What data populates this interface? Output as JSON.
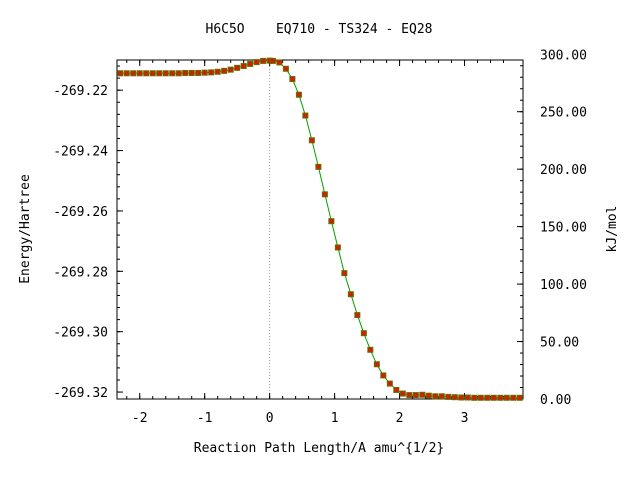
{
  "chart_data": {
    "type": "line",
    "title": "H6C5O    EQ710 - TS324 - EQ28",
    "xlabel": "Reaction Path Length/A amu^{1/2}",
    "ylabel": "Energy/Hartree",
    "y2label": "kJ/mol",
    "xlim": [
      -2.35,
      3.9
    ],
    "ylim": [
      -269.3223,
      -269.21
    ],
    "y2lim": [
      0,
      295
    ],
    "x_ticks": [
      -2,
      -1,
      0,
      1,
      2,
      3
    ],
    "x_tick_labels": [
      "-2",
      "-1",
      "0",
      "1",
      "2",
      "3"
    ],
    "y_ticks": [
      -269.22,
      -269.24,
      -269.26,
      -269.28,
      -269.3,
      -269.32
    ],
    "y_tick_labels": [
      "-269.22",
      "-269.24",
      "-269.26",
      "-269.28",
      "-269.30",
      "-269.32"
    ],
    "y2_ticks": [
      0,
      50,
      100,
      150,
      200,
      250,
      300
    ],
    "y2_tick_labels": [
      "0.00",
      "50.00",
      "100.00",
      "150.00",
      "200.00",
      "250.00",
      "300.00"
    ],
    "ts_marker_x": 0,
    "series": [
      {
        "line_color": "#00a000",
        "marker_color": "#cc2200",
        "marker_edge": "#6a6a00",
        "x": [
          -2.3,
          -2.2,
          -2.1,
          -2.0,
          -1.9,
          -1.8,
          -1.7,
          -1.6,
          -1.5,
          -1.4,
          -1.3,
          -1.2,
          -1.1,
          -1.0,
          -0.9,
          -0.8,
          -0.7,
          -0.6,
          -0.5,
          -0.4,
          -0.3,
          -0.2,
          -0.1,
          0.0,
          0.05,
          0.15,
          0.25,
          0.35,
          0.45,
          0.55,
          0.65,
          0.75,
          0.85,
          0.95,
          1.05,
          1.15,
          1.25,
          1.35,
          1.45,
          1.55,
          1.65,
          1.75,
          1.85,
          1.95,
          2.05,
          2.15,
          2.25,
          2.35,
          2.45,
          2.55,
          2.65,
          2.75,
          2.85,
          2.95,
          3.05,
          3.15,
          3.25,
          3.35,
          3.45,
          3.55,
          3.65,
          3.75,
          3.85
        ],
        "y": [
          -269.2144,
          -269.2144,
          -269.2144,
          -269.2144,
          -269.2144,
          -269.2144,
          -269.2144,
          -269.2144,
          -269.2144,
          -269.2144,
          -269.2143,
          -269.2143,
          -269.2143,
          -269.2142,
          -269.2141,
          -269.2139,
          -269.2136,
          -269.2132,
          -269.2126,
          -269.212,
          -269.2113,
          -269.2107,
          -269.2103,
          -269.2102,
          -269.2103,
          -269.2108,
          -269.2129,
          -269.2163,
          -269.2215,
          -269.2284,
          -269.2366,
          -269.2454,
          -269.2545,
          -269.2634,
          -269.2721,
          -269.2806,
          -269.2876,
          -269.2945,
          -269.3005,
          -269.306,
          -269.3108,
          -269.3145,
          -269.3172,
          -269.3193,
          -269.3205,
          -269.321,
          -269.321,
          -269.3209,
          -269.3212,
          -269.3214,
          -269.3214,
          -269.3216,
          -269.3217,
          -269.3218,
          -269.3218,
          -269.3219,
          -269.3219,
          -269.3219,
          -269.3219,
          -269.3219,
          -269.3219,
          -269.3219,
          -269.3219
        ]
      }
    ]
  }
}
